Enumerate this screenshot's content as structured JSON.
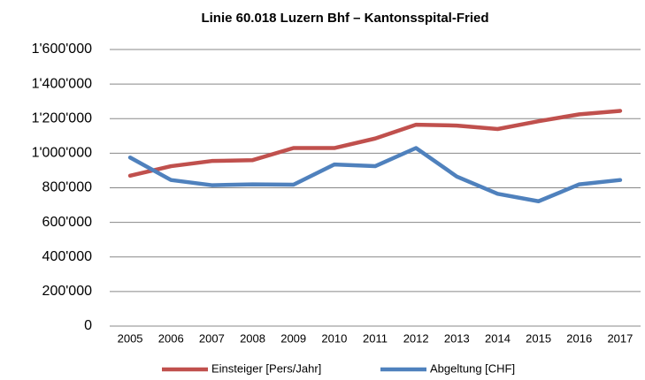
{
  "chart_data": {
    "type": "line",
    "title": "Linie 60.018 Luzern Bhf – Kantonsspital-Fried",
    "categories": [
      "2005",
      "2006",
      "2007",
      "2008",
      "2009",
      "2010",
      "2011",
      "2012",
      "2013",
      "2014",
      "2015",
      "2016",
      "2017"
    ],
    "series": [
      {
        "name": "Einsteiger [Pers/Jahr]",
        "color": "#c0504d",
        "values": [
          870000,
          925000,
          955000,
          960000,
          1030000,
          1030000,
          1085000,
          1165000,
          1160000,
          1140000,
          1185000,
          1225000,
          1245000
        ]
      },
      {
        "name": "Abgeltung [CHF]",
        "color": "#4f81bd",
        "values": [
          975000,
          845000,
          815000,
          820000,
          818000,
          935000,
          925000,
          1030000,
          865000,
          765000,
          722000,
          820000,
          845000
        ]
      }
    ],
    "ylim": [
      0,
      1600000
    ],
    "yticks": [
      0,
      {
        "value": 200000,
        "label": "200'000"
      },
      {
        "value": 400000,
        "label": "400'000"
      },
      {
        "value": 600000,
        "label": "600'000"
      },
      {
        "value": 800000,
        "label": "800'000"
      },
      {
        "value": 1000000,
        "label": "1'000'000"
      },
      {
        "value": 1200000,
        "label": "1'200'000"
      },
      {
        "value": 1400000,
        "label": "1'400'000"
      },
      {
        "value": 1600000,
        "label": "1'600'000"
      }
    ],
    "grid": true,
    "legend": "bottom"
  }
}
